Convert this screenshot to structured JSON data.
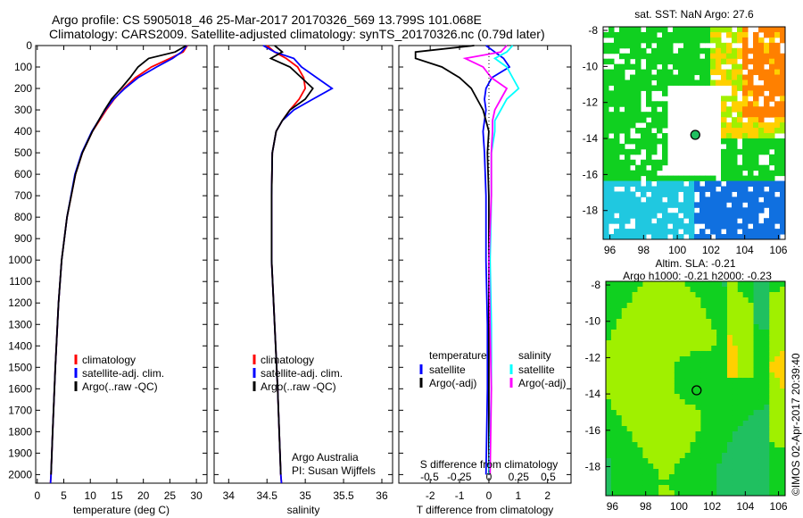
{
  "header": {
    "line1": "Argo profile: CS 5905018_46 25-Mar-2017 20170326_569 13.799S 101.068E",
    "line2": "Climatology: CARS2009. Satellite-adjusted climatology: synTS_20170326.nc (0.79d later)"
  },
  "colors": {
    "climatology": "#ff0000",
    "satellite": "#0000ff",
    "argo": "#000000",
    "sal_satellite": "#00ffff",
    "sal_argo": "#ff00ff"
  },
  "chart_data": [
    {
      "type": "line",
      "xlabel": "temperature (deg C)",
      "xlim": [
        -0.3,
        32
      ],
      "ylim": [
        0,
        2040
      ],
      "xticks": [
        0,
        5,
        10,
        15,
        20,
        25,
        30
      ],
      "yticks": [
        0,
        100,
        200,
        300,
        400,
        500,
        600,
        700,
        800,
        900,
        1000,
        1100,
        1200,
        1300,
        1400,
        1500,
        1600,
        1700,
        1800,
        1900,
        2000
      ],
      "depth": [
        0,
        30,
        60,
        100,
        150,
        200,
        250,
        300,
        400,
        500,
        600,
        800,
        1000,
        1200,
        1500,
        1800,
        2000,
        2040
      ],
      "series": [
        {
          "name": "climatology",
          "color": "#ff0000",
          "values": [
            28.3,
            27.5,
            25,
            21.5,
            18.5,
            16.3,
            14.5,
            13,
            10.4,
            8.5,
            7.2,
            5.6,
            4.6,
            4,
            3.4,
            2.9,
            2.6,
            2.5
          ]
        },
        {
          "name": "satellite-adj. clim.",
          "color": "#0000ff",
          "values": [
            28.2,
            27.2,
            25.5,
            22.5,
            19,
            16.5,
            14.4,
            12.8,
            10.3,
            8.4,
            7.1,
            5.6,
            4.6,
            4,
            3.4,
            2.9,
            2.6,
            2.5
          ]
        },
        {
          "name": "Argo(..raw -QC)",
          "color": "#000000",
          "values": [
            28.1,
            26,
            21,
            19,
            17.5,
            15.8,
            14,
            12.7,
            10.4,
            8.5,
            7.2,
            5.6,
            4.6,
            4,
            3.4,
            2.9,
            2.6,
            null
          ]
        }
      ],
      "legend": [
        "climatology",
        "satellite-adj. clim.",
        "Argo(..raw -QC)"
      ]
    },
    {
      "type": "line",
      "xlabel": "salinity",
      "xlim": [
        33.81,
        36.14
      ],
      "ylim": [
        0,
        2040
      ],
      "xticks": [
        34,
        34.5,
        35,
        35.5,
        36
      ],
      "depth": [
        0,
        30,
        60,
        100,
        150,
        200,
        250,
        300,
        350,
        400,
        500,
        700,
        1000,
        1300,
        1600,
        2000,
        2040
      ],
      "series": [
        {
          "name": "climatology",
          "color": "#ff0000",
          "values": [
            34.5,
            34.6,
            34.75,
            34.9,
            34.98,
            35.0,
            34.92,
            34.8,
            34.7,
            34.62,
            34.57,
            34.56,
            34.56,
            34.6,
            34.64,
            34.68,
            34.69
          ]
        },
        {
          "name": "satellite-adj. clim.",
          "color": "#0000ff",
          "values": [
            34.45,
            34.6,
            34.85,
            34.95,
            35.15,
            35.35,
            35.1,
            34.85,
            34.7,
            34.62,
            34.57,
            34.56,
            34.56,
            34.6,
            34.64,
            34.68,
            34.69
          ]
        },
        {
          "name": "Argo(..raw -QC)",
          "color": "#000000",
          "values": [
            34.6,
            34.7,
            34.55,
            34.8,
            34.95,
            35.1,
            35.0,
            34.8,
            34.7,
            34.62,
            34.57,
            34.56,
            34.56,
            34.6,
            34.64,
            34.68,
            null
          ]
        }
      ],
      "legend": [
        "climatology",
        "satellite-adj. clim.",
        "Argo(..raw -QC)"
      ],
      "annotation": [
        "Argo Australia",
        "PI: Susan Wijffels"
      ]
    },
    {
      "type": "line",
      "xlabel": "T difference from climatology",
      "xlabel_top": "S difference from climatology",
      "xlim": [
        -3.07,
        2.8
      ],
      "s_xlim": [
        -0.75,
        0.7
      ],
      "ylim": [
        0,
        2040
      ],
      "xticks": [
        -2,
        -1,
        0,
        1,
        2
      ],
      "s_xticks": [
        "-0.5",
        "-0.25",
        "0",
        "0.25",
        "0.5"
      ],
      "depth": [
        0,
        30,
        60,
        100,
        150,
        200,
        250,
        300,
        350,
        400,
        500,
        700,
        1000,
        1300,
        1600,
        2000
      ],
      "series": [
        {
          "name": "T satellite",
          "color": "#0000ff",
          "values": [
            -0.1,
            0.2,
            0.5,
            0.7,
            0.1,
            -0.1,
            -0.15,
            -0.1,
            -0.15,
            -0.2,
            -0.15,
            -0.1,
            -0.1,
            -0.05,
            -0.05,
            -0.1
          ]
        },
        {
          "name": "T Argo(-adj)",
          "color": "#000000",
          "values": [
            -0.5,
            -2.5,
            -2.5,
            -1.6,
            -1.0,
            -0.6,
            -0.4,
            -0.2,
            -0.1,
            0.0,
            -0.05,
            0,
            0,
            0,
            0,
            0
          ]
        },
        {
          "name": "S satellite",
          "color": "#00ffff",
          "values": [
            0.2,
            0.15,
            0.05,
            0.15,
            0.2,
            0.25,
            0.15,
            0.1,
            0.05,
            0.05,
            0.02,
            0.02,
            0.01,
            0.02,
            0.02,
            0.0
          ]
        },
        {
          "name": "S Argo(-adj)",
          "color": "#ff00ff",
          "values": [
            0.15,
            0.1,
            -0.2,
            -0.05,
            0.02,
            0.15,
            0.1,
            0.05,
            0.03,
            0.03,
            0.02,
            0.02,
            0.0,
            0.01,
            0.02,
            0.01
          ]
        }
      ],
      "legend": {
        "t_header": "temperature",
        "s_header": "salinity",
        "t": [
          "satellite",
          "Argo(-adj)"
        ],
        "s": [
          "satellite",
          "Argo(-adj)"
        ]
      }
    },
    {
      "type": "heatmap",
      "title": "sat. SST: NaN Argo: 27.6",
      "xlim": [
        95.6,
        106.4
      ],
      "ylim": [
        -19.6,
        -7.8
      ],
      "xticks": [
        96,
        98,
        100,
        102,
        104,
        106
      ],
      "yticks": [
        -8,
        -10,
        -12,
        -14,
        -16,
        -18
      ],
      "marker": [
        101.068,
        -13.799
      ]
    },
    {
      "type": "heatmap",
      "title": "Altim. SLA: -0.21",
      "subtitle": "Argo h1000: -0.21 h2000: -0.23",
      "xlim": [
        95.6,
        106.4
      ],
      "ylim": [
        -19.6,
        -7.8
      ],
      "xticks": [
        96,
        98,
        100,
        102,
        104,
        106
      ],
      "yticks": [
        -8,
        -10,
        -12,
        -14,
        -16,
        -18
      ],
      "marker": [
        101.068,
        -13.799
      ]
    }
  ],
  "credit": "©IMOS 02-Apr-2017 20:39:40"
}
